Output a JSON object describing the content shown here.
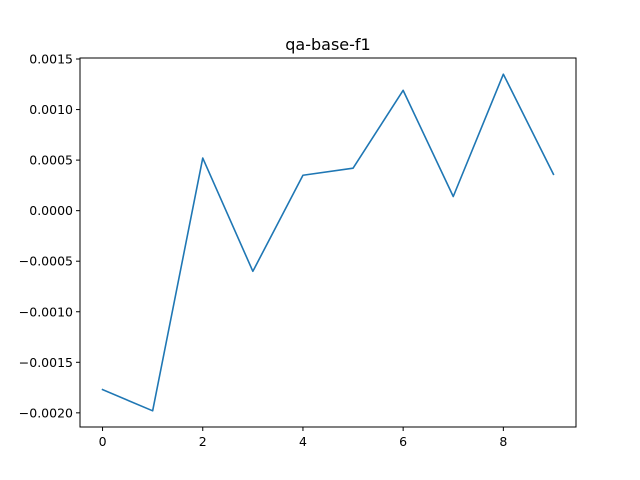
{
  "chart_data": {
    "type": "line",
    "title": "qa-base-f1",
    "xlabel": "",
    "ylabel": "",
    "x": [
      0,
      1,
      2,
      3,
      4,
      5,
      6,
      7,
      8,
      9
    ],
    "series": [
      {
        "values": [
          -0.00177,
          -0.00198,
          0.00052,
          -0.0006,
          0.00035,
          0.00042,
          0.00119,
          0.00014,
          0.00135,
          0.00036
        ]
      }
    ],
    "xlim": [
      -0.45,
      9.45
    ],
    "ylim": [
      -0.00214,
      0.00151
    ],
    "xticks": [
      0,
      2,
      4,
      6,
      8
    ],
    "xtick_labels": [
      "0",
      "2",
      "4",
      "6",
      "8"
    ],
    "yticks": [
      -0.002,
      -0.0015,
      -0.001,
      -0.0005,
      0.0,
      0.0005,
      0.001,
      0.0015
    ],
    "ytick_labels": [
      "−0.0020",
      "−0.0015",
      "−0.0010",
      "−0.0005",
      "0.0000",
      "0.0005",
      "0.0010",
      "0.0015"
    ],
    "grid": false,
    "colors": {
      "line": "#1f77b4",
      "axis": "#000000"
    }
  }
}
